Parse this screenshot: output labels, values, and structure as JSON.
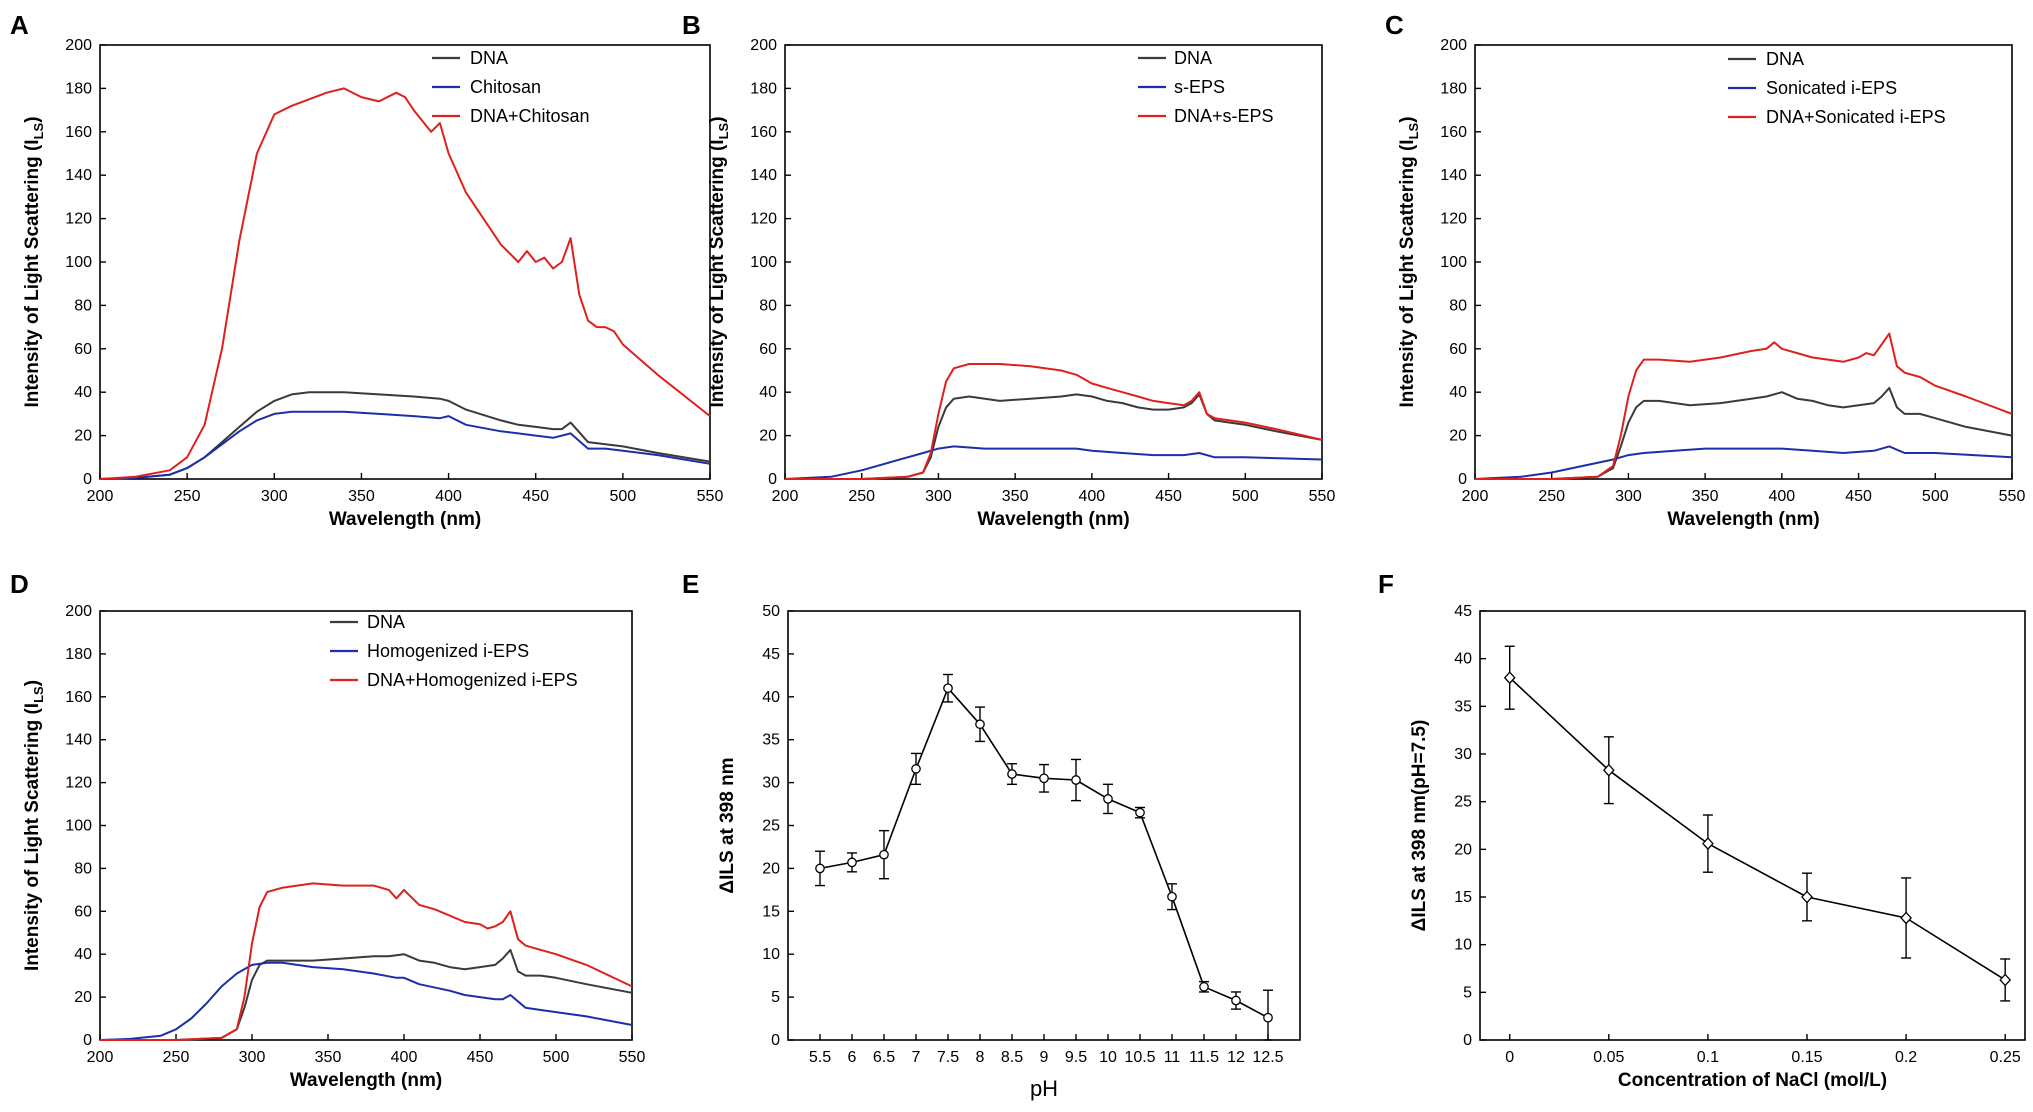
{
  "figure_letters": [
    "A",
    "B",
    "C",
    "D",
    "E",
    "F"
  ],
  "chart_data": [
    {
      "panel": "A",
      "type": "line",
      "xlabel": "Wavelength (nm)",
      "ylabel": "Intensity of Light Scattering (I",
      "ylabel_sub": "LS",
      "ylabel_close": ")",
      "xlim": [
        200,
        550
      ],
      "ylim": [
        0,
        200
      ],
      "xticks": [
        200,
        250,
        300,
        350,
        400,
        450,
        500,
        550
      ],
      "yticks": [
        0,
        20,
        40,
        60,
        80,
        100,
        120,
        140,
        160,
        180,
        200
      ],
      "series": [
        {
          "name": "DNA",
          "color": "#3a3a3a",
          "x": [
            200,
            220,
            240,
            250,
            260,
            270,
            280,
            290,
            300,
            310,
            320,
            340,
            360,
            380,
            395,
            400,
            410,
            430,
            440,
            450,
            460,
            465,
            470,
            480,
            490,
            500,
            520,
            550
          ],
          "y": [
            0,
            0.5,
            2,
            5,
            10,
            17,
            24,
            31,
            36,
            39,
            40,
            40,
            39,
            38,
            37,
            36,
            32,
            27,
            25,
            24,
            23,
            23,
            26,
            17,
            16,
            15,
            12,
            8
          ]
        },
        {
          "name": "Chitosan",
          "color": "#1c2fa8",
          "x": [
            200,
            220,
            240,
            250,
            260,
            270,
            280,
            290,
            300,
            310,
            320,
            340,
            360,
            380,
            395,
            400,
            410,
            430,
            440,
            450,
            460,
            470,
            480,
            490,
            500,
            520,
            550
          ],
          "y": [
            0,
            0.5,
            2,
            5,
            10,
            16,
            22,
            27,
            30,
            31,
            31,
            31,
            30,
            29,
            28,
            29,
            25,
            22,
            21,
            20,
            19,
            21,
            14,
            14,
            13,
            11,
            7
          ]
        },
        {
          "name": "DNA+Chitosan",
          "color": "#e0201c",
          "x": [
            200,
            220,
            240,
            250,
            260,
            270,
            280,
            290,
            300,
            310,
            320,
            330,
            340,
            350,
            360,
            370,
            375,
            380,
            390,
            395,
            400,
            410,
            420,
            430,
            440,
            445,
            450,
            455,
            460,
            465,
            470,
            475,
            480,
            485,
            490,
            495,
            500,
            520,
            550
          ],
          "y": [
            0,
            1,
            4,
            10,
            25,
            60,
            110,
            150,
            168,
            172,
            175,
            178,
            180,
            176,
            174,
            178,
            176,
            170,
            160,
            164,
            150,
            132,
            120,
            108,
            100,
            105,
            100,
            102,
            97,
            100,
            111,
            85,
            73,
            70,
            70,
            68,
            62,
            48,
            29
          ]
        }
      ]
    },
    {
      "panel": "B",
      "type": "line",
      "xlabel": "Wavelength (nm)",
      "ylabel": "Intensity of Light Scattering (I",
      "ylabel_sub": "LS",
      "ylabel_close": ")",
      "xlim": [
        200,
        550
      ],
      "ylim": [
        0,
        200
      ],
      "xticks": [
        200,
        250,
        300,
        350,
        400,
        450,
        500,
        550
      ],
      "yticks": [
        0,
        20,
        40,
        60,
        80,
        100,
        120,
        140,
        160,
        180,
        200
      ],
      "series": [
        {
          "name": "DNA",
          "color": "#3a3a3a",
          "x": [
            200,
            250,
            280,
            290,
            295,
            300,
            305,
            310,
            320,
            340,
            360,
            380,
            390,
            400,
            410,
            420,
            430,
            440,
            450,
            460,
            465,
            470,
            475,
            480,
            490,
            500,
            520,
            550
          ],
          "y": [
            0,
            0,
            1,
            3,
            10,
            24,
            33,
            37,
            38,
            36,
            37,
            38,
            39,
            38,
            36,
            35,
            33,
            32,
            32,
            33,
            35,
            39,
            30,
            27,
            26,
            25,
            22,
            18
          ]
        },
        {
          "name": "s-EPS",
          "color": "#1c2fa8",
          "x": [
            200,
            230,
            250,
            270,
            290,
            300,
            310,
            330,
            350,
            370,
            390,
            400,
            420,
            440,
            460,
            470,
            480,
            500,
            550
          ],
          "y": [
            0,
            1,
            4,
            8,
            12,
            14,
            15,
            14,
            14,
            14,
            14,
            13,
            12,
            11,
            11,
            12,
            10,
            10,
            9
          ]
        },
        {
          "name": "DNA+s-EPS",
          "color": "#e0201c",
          "x": [
            200,
            250,
            280,
            290,
            295,
            300,
            305,
            310,
            320,
            340,
            360,
            380,
            390,
            400,
            410,
            420,
            430,
            440,
            450,
            460,
            465,
            470,
            475,
            480,
            490,
            500,
            520,
            550
          ],
          "y": [
            0,
            0,
            1,
            3,
            12,
            30,
            45,
            51,
            53,
            53,
            52,
            50,
            48,
            44,
            42,
            40,
            38,
            36,
            35,
            34,
            36,
            40,
            30,
            28,
            27,
            26,
            23,
            18
          ]
        }
      ]
    },
    {
      "panel": "C",
      "type": "line",
      "xlabel": "Wavelength (nm)",
      "ylabel": "Intensity of Light Scattering (I",
      "ylabel_sub": "LS",
      "ylabel_close": ")",
      "xlim": [
        200,
        550
      ],
      "ylim": [
        0,
        200
      ],
      "xticks": [
        200,
        250,
        300,
        350,
        400,
        450,
        500,
        550
      ],
      "yticks": [
        0,
        20,
        40,
        60,
        80,
        100,
        120,
        140,
        160,
        180,
        200
      ],
      "series": [
        {
          "name": "DNA",
          "color": "#3a3a3a",
          "x": [
            200,
            250,
            280,
            290,
            295,
            300,
            305,
            310,
            320,
            340,
            360,
            380,
            390,
            400,
            410,
            420,
            430,
            440,
            450,
            460,
            465,
            470,
            475,
            480,
            490,
            500,
            520,
            550
          ],
          "y": [
            0,
            0,
            1,
            5,
            15,
            26,
            33,
            36,
            36,
            34,
            35,
            37,
            38,
            40,
            37,
            36,
            34,
            33,
            34,
            35,
            38,
            42,
            33,
            30,
            30,
            28,
            24,
            20
          ]
        },
        {
          "name": "Sonicated i-EPS",
          "color": "#1c2fa8",
          "x": [
            200,
            230,
            250,
            270,
            290,
            300,
            310,
            330,
            350,
            370,
            390,
            400,
            420,
            440,
            460,
            470,
            480,
            500,
            550
          ],
          "y": [
            0,
            1,
            3,
            6,
            9,
            11,
            12,
            13,
            14,
            14,
            14,
            14,
            13,
            12,
            13,
            15,
            12,
            12,
            10
          ]
        },
        {
          "name": "DNA+Sonicated i-EPS",
          "color": "#e0201c",
          "x": [
            200,
            250,
            280,
            290,
            295,
            300,
            305,
            310,
            320,
            340,
            360,
            380,
            390,
            395,
            400,
            410,
            420,
            430,
            440,
            450,
            455,
            460,
            465,
            470,
            475,
            480,
            490,
            500,
            520,
            550
          ],
          "y": [
            0,
            0,
            1,
            6,
            20,
            38,
            50,
            55,
            55,
            54,
            56,
            59,
            60,
            63,
            60,
            58,
            56,
            55,
            54,
            56,
            58,
            57,
            62,
            67,
            52,
            49,
            47,
            43,
            38,
            30
          ]
        }
      ]
    },
    {
      "panel": "D",
      "type": "line",
      "xlabel": "Wavelength (nm)",
      "ylabel": "Intensity of Light Scattering (I",
      "ylabel_sub": "LS",
      "ylabel_close": ")",
      "xlim": [
        200,
        550
      ],
      "ylim": [
        0,
        200
      ],
      "xticks": [
        200,
        250,
        300,
        350,
        400,
        450,
        500,
        550
      ],
      "yticks": [
        0,
        20,
        40,
        60,
        80,
        100,
        120,
        140,
        160,
        180,
        200
      ],
      "series": [
        {
          "name": "DNA",
          "color": "#3a3a3a",
          "x": [
            200,
            250,
            280,
            290,
            295,
            300,
            305,
            310,
            320,
            340,
            360,
            380,
            390,
            400,
            410,
            420,
            430,
            440,
            450,
            460,
            465,
            470,
            475,
            480,
            490,
            500,
            520,
            550
          ],
          "y": [
            0,
            0,
            1,
            5,
            15,
            28,
            35,
            37,
            37,
            37,
            38,
            39,
            39,
            40,
            37,
            36,
            34,
            33,
            34,
            35,
            38,
            42,
            32,
            30,
            30,
            29,
            26,
            22
          ]
        },
        {
          "name": "Homogenized i-EPS",
          "color": "#1c2fa8",
          "x": [
            200,
            220,
            240,
            250,
            260,
            270,
            280,
            290,
            300,
            310,
            320,
            340,
            360,
            380,
            395,
            400,
            410,
            430,
            440,
            450,
            460,
            465,
            470,
            480,
            490,
            500,
            520,
            550
          ],
          "y": [
            0,
            0.5,
            2,
            5,
            10,
            17,
            25,
            31,
            35,
            36,
            36,
            34,
            33,
            31,
            29,
            29,
            26,
            23,
            21,
            20,
            19,
            19,
            21,
            15,
            14,
            13,
            11,
            7
          ]
        },
        {
          "name": "DNA+Homogenized i-EPS",
          "color": "#e0201c",
          "x": [
            200,
            250,
            280,
            290,
            295,
            300,
            305,
            310,
            320,
            340,
            360,
            380,
            390,
            395,
            400,
            410,
            420,
            430,
            440,
            450,
            455,
            460,
            465,
            470,
            475,
            480,
            490,
            500,
            520,
            550
          ],
          "y": [
            0,
            0,
            1,
            5,
            20,
            45,
            62,
            69,
            71,
            73,
            72,
            72,
            70,
            66,
            70,
            63,
            61,
            58,
            55,
            54,
            52,
            53,
            55,
            60,
            47,
            44,
            42,
            40,
            35,
            25
          ]
        }
      ]
    },
    {
      "panel": "E",
      "type": "line",
      "marker": "circle",
      "xlabel": "pH",
      "ylabel": "ΔILS at 398 nm",
      "xlim": [
        5.0,
        13.0
      ],
      "ylim": [
        0,
        50
      ],
      "xticks": [
        5.5,
        6,
        6.5,
        7,
        7.5,
        8,
        8.5,
        9,
        9.5,
        10,
        10.5,
        11,
        11.5,
        12,
        12.5
      ],
      "xtick_labels": [
        "5.5",
        "6",
        "6.5",
        "7",
        "7.5",
        "8",
        "8.5",
        "9",
        "9.5",
        "10",
        "10.5",
        "11",
        "11.5",
        "12",
        "12.5"
      ],
      "yticks": [
        0,
        5,
        10,
        15,
        20,
        25,
        30,
        35,
        40,
        45,
        50
      ],
      "series": [
        {
          "name": "ΔILS",
          "color": "#000000",
          "x": [
            5.5,
            6,
            6.5,
            7,
            7.5,
            8,
            8.5,
            9,
            9.5,
            10,
            10.5,
            11,
            11.5,
            12,
            12.5
          ],
          "y": [
            20,
            20.7,
            21.6,
            31.6,
            41,
            36.8,
            31,
            30.5,
            30.3,
            28.1,
            26.5,
            16.7,
            6.2,
            4.6,
            2.6
          ],
          "err": [
            2.0,
            1.1,
            2.8,
            1.8,
            1.6,
            2.0,
            1.2,
            1.6,
            2.4,
            1.7,
            0.6,
            1.5,
            0.6,
            1.0,
            3.2
          ]
        }
      ]
    },
    {
      "panel": "F",
      "type": "line",
      "marker": "diamond",
      "xlabel": "Concentration of NaCl (mol/L)",
      "ylabel": "ΔILS at 398 nm(pH=7.5)",
      "xlim": [
        -0.015,
        0.26
      ],
      "ylim": [
        0,
        45
      ],
      "xticks": [
        0,
        0.05,
        0.1,
        0.15,
        0.2,
        0.25
      ],
      "xtick_labels": [
        "0",
        "0.05",
        "0.1",
        "0.15",
        "0.2",
        "0.25"
      ],
      "yticks": [
        0,
        5,
        10,
        15,
        20,
        25,
        30,
        35,
        40,
        45
      ],
      "series": [
        {
          "name": "ΔILS",
          "color": "#000000",
          "x": [
            0,
            0.05,
            0.1,
            0.15,
            0.2,
            0.25
          ],
          "y": [
            38,
            28.3,
            20.6,
            15,
            12.8,
            6.3
          ],
          "err": [
            3.3,
            3.5,
            3.0,
            2.5,
            4.2,
            2.2
          ]
        }
      ]
    }
  ]
}
